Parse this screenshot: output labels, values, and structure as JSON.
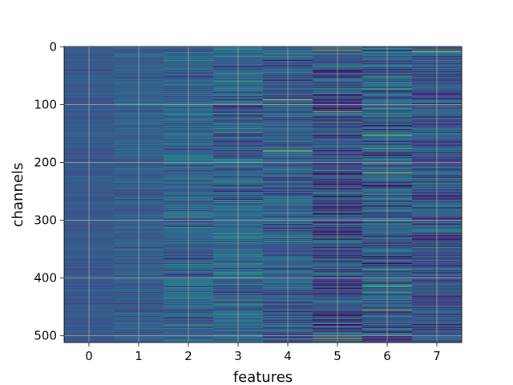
{
  "chart_data": {
    "type": "heatmap",
    "title": "",
    "xlabel": "features",
    "ylabel": "channels",
    "x_ticks": [
      "0",
      "1",
      "2",
      "3",
      "4",
      "5",
      "6",
      "7"
    ],
    "y_ticks": [
      "0",
      "100",
      "200",
      "300",
      "400",
      "500"
    ],
    "y_tick_values": [
      0,
      100,
      200,
      300,
      400,
      500
    ],
    "n_columns": 8,
    "n_rows": 512,
    "xlim": [
      -0.5,
      7.5
    ],
    "ylim": [
      511.5,
      -0.5
    ],
    "y_inverted": true,
    "grid": true,
    "colormap": "viridis",
    "column_base_value": [
      0.28,
      0.3,
      0.33,
      0.33,
      0.31,
      0.26,
      0.31,
      0.28
    ],
    "column_spread": [
      0.03,
      0.05,
      0.1,
      0.12,
      0.11,
      0.15,
      0.14,
      0.12
    ],
    "highlights": [
      {
        "feature": 4,
        "channel": 92,
        "value": 0.95
      },
      {
        "feature": 4,
        "channel": 180,
        "value": 0.98
      },
      {
        "feature": 5,
        "channel": 6,
        "value": 0.97
      },
      {
        "feature": 5,
        "channel": 112,
        "value": 0.9
      },
      {
        "feature": 5,
        "channel": 505,
        "value": 0.96
      },
      {
        "feature": 6,
        "channel": 153,
        "value": 0.85
      },
      {
        "feature": 6,
        "channel": 218,
        "value": 0.92
      },
      {
        "feature": 6,
        "channel": 455,
        "value": 0.9
      },
      {
        "feature": 7,
        "channel": 8,
        "value": 0.97
      },
      {
        "feature": 7,
        "channel": 232,
        "value": 0.6
      },
      {
        "feature": 3,
        "channel": 98,
        "value": 0.6
      },
      {
        "feature": 5,
        "channel": 325,
        "value": 0.0
      },
      {
        "feature": 5,
        "channel": 418,
        "value": 0.02
      },
      {
        "feature": 6,
        "channel": 183,
        "value": 0.05
      }
    ]
  }
}
